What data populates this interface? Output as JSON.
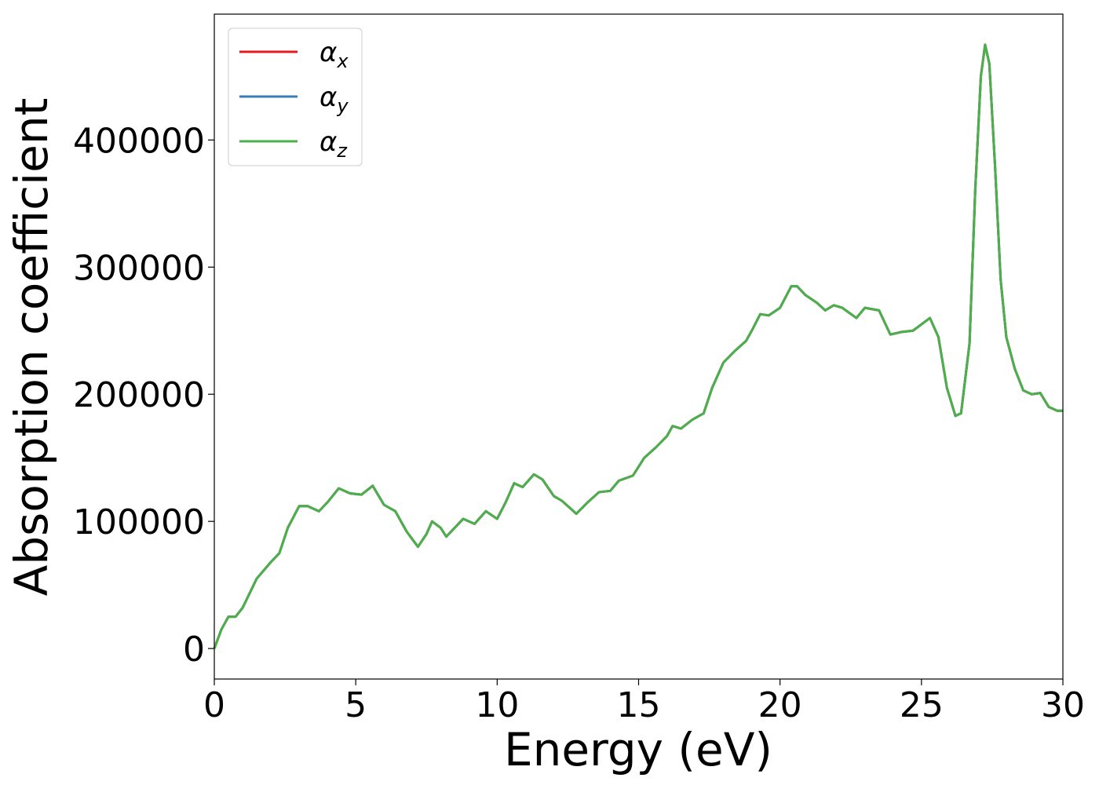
{
  "chart_data": {
    "type": "line",
    "x_label": "Energy (eV)",
    "y_label": "Absorption coefficient",
    "x": [
      0,
      0.25,
      0.5,
      0.75,
      1.0,
      1.5,
      2.0,
      2.3,
      2.6,
      3.0,
      3.3,
      3.7,
      4.0,
      4.4,
      4.8,
      5.2,
      5.6,
      6.0,
      6.4,
      6.8,
      7.2,
      7.5,
      7.7,
      8.0,
      8.2,
      8.5,
      8.8,
      9.2,
      9.6,
      10.0,
      10.3,
      10.6,
      10.9,
      11.3,
      11.6,
      12.0,
      12.3,
      12.8,
      13.2,
      13.6,
      14.0,
      14.3,
      14.8,
      15.2,
      15.6,
      16.0,
      16.2,
      16.5,
      16.9,
      17.3,
      17.6,
      18.0,
      18.4,
      18.8,
      19.0,
      19.3,
      19.6,
      20.0,
      20.4,
      20.6,
      20.9,
      21.3,
      21.6,
      21.9,
      22.2,
      22.7,
      23.0,
      23.5,
      23.9,
      24.3,
      24.7,
      25.0,
      25.3,
      25.6,
      25.9,
      26.2,
      26.4,
      26.7,
      26.9,
      27.1,
      27.25,
      27.4,
      27.6,
      27.8,
      28.0,
      28.3,
      28.6,
      28.9,
      29.2,
      29.5,
      29.8,
      30.0
    ],
    "series": [
      {
        "name": "αx",
        "color": "#e41a1c",
        "values": [
          0,
          15000,
          25000,
          25000,
          32000,
          55000,
          68000,
          75000,
          95000,
          112000,
          112000,
          108000,
          115000,
          126000,
          122000,
          121000,
          128000,
          113000,
          108000,
          92000,
          80000,
          90000,
          100000,
          95000,
          88000,
          95000,
          102000,
          98000,
          108000,
          102000,
          115000,
          130000,
          127000,
          137000,
          133000,
          120000,
          116000,
          106000,
          115000,
          123000,
          124000,
          132000,
          136000,
          150000,
          158000,
          167000,
          175000,
          173000,
          180000,
          185000,
          205000,
          225000,
          234000,
          242000,
          250000,
          263000,
          262000,
          268000,
          285000,
          285000,
          278000,
          272000,
          266000,
          270000,
          268000,
          260000,
          268000,
          266000,
          247000,
          249000,
          250000,
          255000,
          260000,
          245000,
          205000,
          183000,
          185000,
          240000,
          360000,
          450000,
          475000,
          460000,
          380000,
          290000,
          245000,
          220000,
          203000,
          200000,
          201000,
          190000,
          187000,
          187000
        ]
      },
      {
        "name": "αy",
        "color": "#377eb8",
        "values": [
          0,
          15000,
          25000,
          25000,
          32000,
          55000,
          68000,
          75000,
          95000,
          112000,
          112000,
          108000,
          115000,
          126000,
          122000,
          121000,
          128000,
          113000,
          108000,
          92000,
          80000,
          90000,
          100000,
          95000,
          88000,
          95000,
          102000,
          98000,
          108000,
          102000,
          115000,
          130000,
          127000,
          137000,
          133000,
          120000,
          116000,
          106000,
          115000,
          123000,
          124000,
          132000,
          136000,
          150000,
          158000,
          167000,
          175000,
          173000,
          180000,
          185000,
          205000,
          225000,
          234000,
          242000,
          250000,
          263000,
          262000,
          268000,
          285000,
          285000,
          278000,
          272000,
          266000,
          270000,
          268000,
          260000,
          268000,
          266000,
          247000,
          249000,
          250000,
          255000,
          260000,
          245000,
          205000,
          183000,
          185000,
          240000,
          360000,
          450000,
          475000,
          460000,
          380000,
          290000,
          245000,
          220000,
          203000,
          200000,
          201000,
          190000,
          187000,
          187000
        ]
      },
      {
        "name": "αz",
        "color": "#4daf4a",
        "values": [
          0,
          15000,
          25000,
          25000,
          32000,
          55000,
          68000,
          75000,
          95000,
          112000,
          112000,
          108000,
          115000,
          126000,
          122000,
          121000,
          128000,
          113000,
          108000,
          92000,
          80000,
          90000,
          100000,
          95000,
          88000,
          95000,
          102000,
          98000,
          108000,
          102000,
          115000,
          130000,
          127000,
          137000,
          133000,
          120000,
          116000,
          106000,
          115000,
          123000,
          124000,
          132000,
          136000,
          150000,
          158000,
          167000,
          175000,
          173000,
          180000,
          185000,
          205000,
          225000,
          234000,
          242000,
          250000,
          263000,
          262000,
          268000,
          285000,
          285000,
          278000,
          272000,
          266000,
          270000,
          268000,
          260000,
          268000,
          266000,
          247000,
          249000,
          250000,
          255000,
          260000,
          245000,
          205000,
          183000,
          185000,
          240000,
          360000,
          450000,
          475000,
          460000,
          380000,
          290000,
          245000,
          220000,
          203000,
          200000,
          201000,
          190000,
          187000,
          187000
        ]
      }
    ],
    "xlim": [
      0,
      30
    ],
    "xticks": [
      0,
      5,
      10,
      15,
      20,
      25,
      30
    ],
    "ylim": [
      -24000,
      499000
    ],
    "yticks": [
      0,
      100000,
      200000,
      300000,
      400000
    ],
    "legend": "upper left",
    "grid": false
  }
}
